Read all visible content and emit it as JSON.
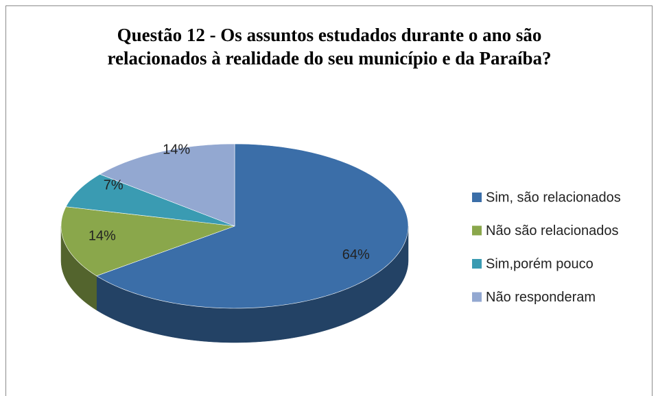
{
  "chart_data": {
    "type": "pie",
    "title": "Questão 12 - Os assuntos estudados durante o ano são relacionados à realidade do seu município e da Paraíba?",
    "categories": [
      "Sim, são relacionados",
      "Não são relacionados",
      "Sim,porém pouco",
      "Não responderam"
    ],
    "values": [
      64,
      14,
      7,
      14
    ],
    "value_labels": [
      "64%",
      "14%",
      "7%",
      "14%"
    ],
    "colors": [
      "#3b6ea8",
      "#8aa74b",
      "#3a9bb2",
      "#93a8d1"
    ],
    "legend": "right"
  }
}
